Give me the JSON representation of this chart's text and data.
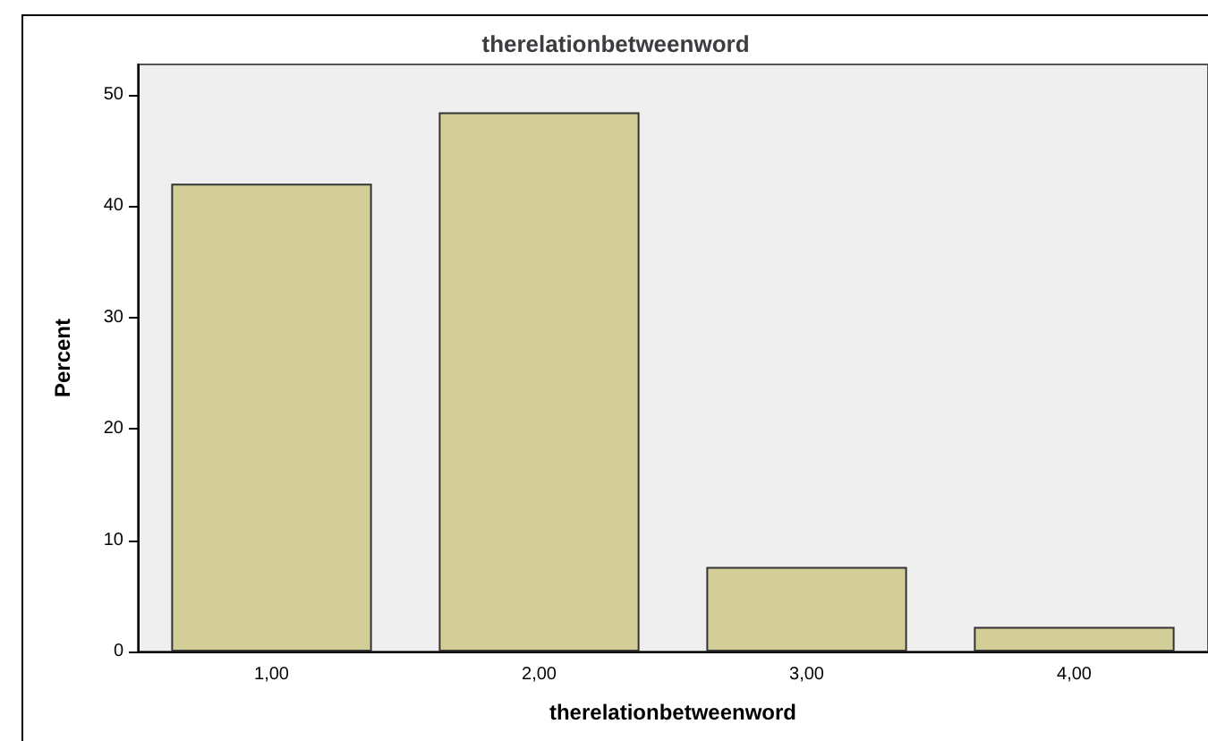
{
  "chart_data": {
    "type": "bar",
    "title": "therelationbetweenword",
    "xlabel": "therelationbetweenword",
    "ylabel": "Percent",
    "categories": [
      "1,00",
      "2,00",
      "3,00",
      "4,00"
    ],
    "values": [
      42.0,
      48.4,
      7.6,
      2.2
    ],
    "color": "#d3ce97",
    "ylim": [
      0,
      52.7
    ],
    "yticks": [
      0,
      10,
      20,
      30,
      40,
      50
    ],
    "grid": false
  }
}
